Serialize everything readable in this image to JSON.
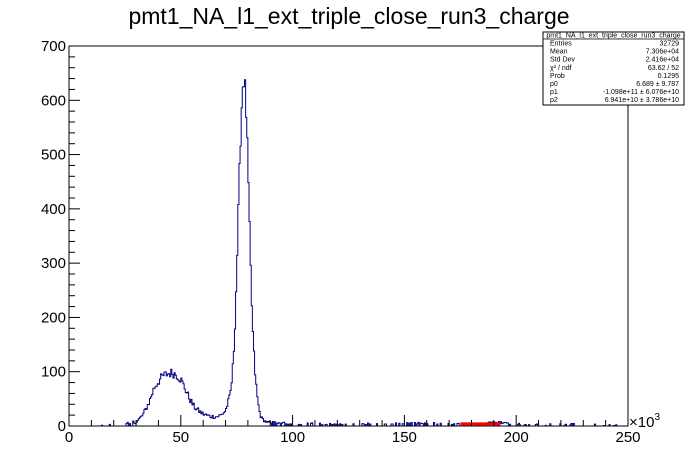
{
  "chart_data": {
    "type": "histogram",
    "title": "pmt1_NA_l1_ext_triple_close_run3_charge",
    "xlabel": "",
    "ylabel": "",
    "xlim": [
      0,
      250
    ],
    "ylim": [
      0,
      700
    ],
    "x_multiplier": {
      "base": "×10",
      "exponent": "3"
    },
    "x_ticks": [
      0,
      50,
      100,
      150,
      200,
      250
    ],
    "y_ticks": [
      0,
      100,
      200,
      300,
      400,
      500,
      600,
      700
    ],
    "grid": false,
    "series": [
      {
        "color": "#000080",
        "x": [
          0,
          10,
          20,
          26,
          30,
          33,
          36,
          38,
          40,
          42,
          44,
          46,
          48,
          50,
          52,
          54,
          56,
          58,
          60,
          63,
          66,
          68,
          70,
          72,
          73,
          74,
          75,
          76,
          77,
          78,
          79,
          80,
          81,
          82,
          83,
          84,
          85,
          86,
          88,
          90,
          95,
          100,
          110,
          120,
          130,
          140,
          150,
          160,
          170,
          175,
          180,
          185,
          190,
          195,
          200,
          210,
          220,
          230,
          240,
          250
        ],
        "values": [
          0,
          0,
          1,
          3,
          7,
          20,
          45,
          70,
          82,
          92,
          96,
          98,
          95,
          86,
          68,
          50,
          35,
          28,
          22,
          18,
          17,
          20,
          28,
          55,
          90,
          160,
          280,
          430,
          570,
          650,
          610,
          480,
          320,
          190,
          110,
          60,
          30,
          15,
          8,
          5,
          4,
          3,
          2,
          2,
          2,
          2,
          3,
          3,
          2,
          2,
          2,
          3,
          5,
          4,
          2,
          1,
          1,
          1,
          0,
          0
        ]
      },
      {
        "color": "#ff0000",
        "x": [
          175,
          178,
          182,
          186,
          190,
          193
        ],
        "values": [
          4,
          4,
          4,
          4,
          4,
          4
        ]
      }
    ]
  },
  "stats_box": {
    "title": "pmt1_NA_l1_ext_triple_close_run3_charge",
    "rows": [
      {
        "label": "Entries",
        "value": "32729"
      },
      {
        "label": "Mean",
        "value": "7.306e+04"
      },
      {
        "label": "Std Dev",
        "value": "2.416e+04"
      },
      {
        "label": "χ² / ndf",
        "value": "63.62 / 52"
      },
      {
        "label": "Prob",
        "value": "0.1295"
      },
      {
        "label": "p0",
        "value": "6.689 ± 9.787"
      },
      {
        "label": "p1",
        "value": "-1.098e+11 ± 6.076e+10"
      },
      {
        "label": "p2",
        "value": "6.941e+10 ± 3.786e+10"
      }
    ]
  }
}
